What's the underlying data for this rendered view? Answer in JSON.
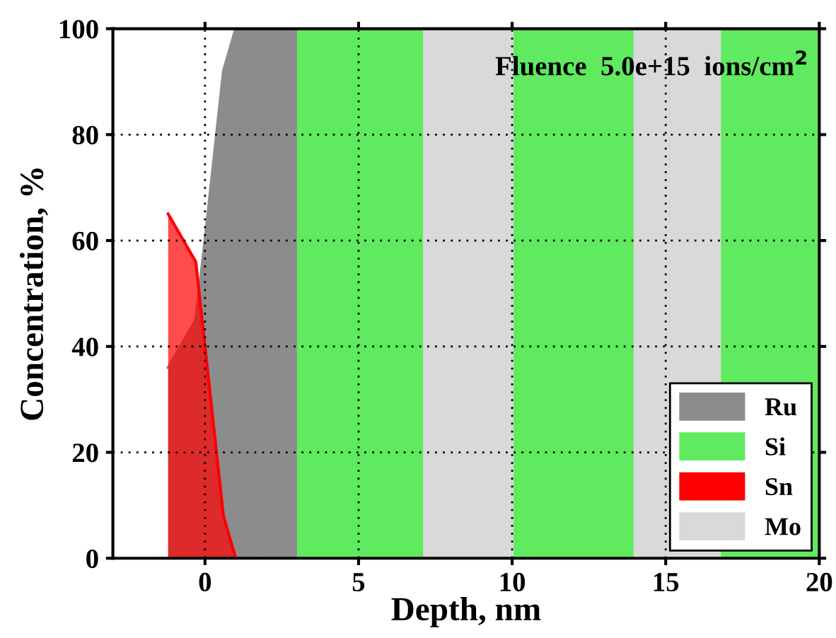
{
  "chart_data": {
    "type": "area",
    "xlabel": "Depth, nm",
    "ylabel": "Concentration, %",
    "annotations": [
      "Fluence  5.0e+15  ions/cm$^{2}$"
    ],
    "series": [
      {
        "name": "Ru",
        "color": "#8c8c8c",
        "x": [
          -1.2,
          -0.3,
          0,
          0.6,
          1.0,
          3.0
        ],
        "values": [
          36,
          45,
          60,
          92,
          100,
          100
        ]
      },
      {
        "name": "Si",
        "color": "#5fea5f",
        "x": [
          3.0,
          7.1,
          7.1,
          10,
          10,
          14,
          14,
          16.8,
          16.8,
          20
        ],
        "values": [
          100,
          100,
          0,
          0,
          100,
          100,
          0,
          0,
          100,
          100
        ]
      },
      {
        "name": "Sn",
        "color": "#ff0000",
        "x": [
          -1.2,
          -0.3,
          0.6,
          1.0
        ],
        "values": [
          65,
          56,
          8,
          0
        ]
      },
      {
        "name": "Mo",
        "color": "#d9d9d9",
        "x": [
          7.1,
          10,
          10,
          14,
          14,
          16.8
        ],
        "values": [
          100,
          100,
          0,
          0,
          100,
          100
        ]
      }
    ],
    "xlim": [
      -3,
      20
    ],
    "ylim": [
      0,
      100
    ],
    "xticks": [
      0,
      5,
      10,
      15,
      20
    ],
    "yticks": [
      0,
      20,
      40,
      60,
      80,
      100
    ],
    "grid": true,
    "legend": "bottom right"
  }
}
